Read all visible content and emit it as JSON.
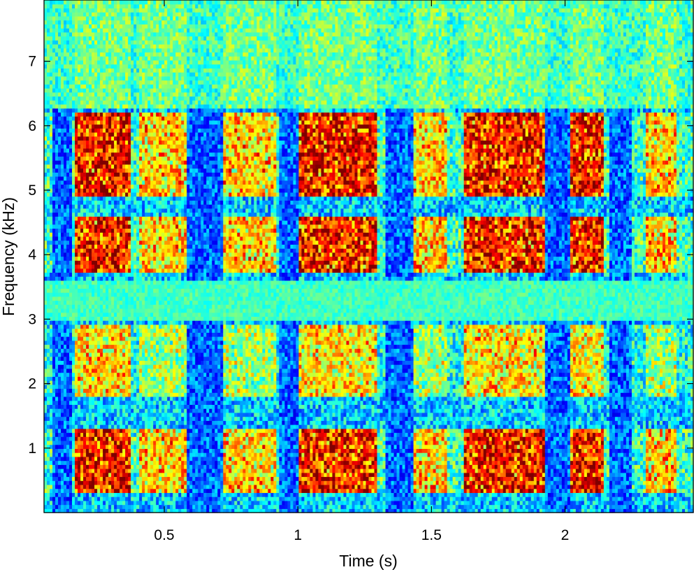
{
  "chart_data": {
    "type": "heatmap",
    "subtype": "spectrogram",
    "title": "",
    "xlabel": "Time (s)",
    "ylabel": "Frequency (kHz)",
    "xlim": [
      0.05,
      2.48
    ],
    "ylim": [
      0.0,
      7.95
    ],
    "x_ticks": [
      0.5,
      1,
      1.5,
      2
    ],
    "x_tick_labels": [
      "0.5",
      "1",
      "1.5",
      "2"
    ],
    "y_ticks": [
      1,
      2,
      3,
      4,
      5,
      6,
      7
    ],
    "y_tick_labels": [
      "1",
      "2",
      "3",
      "4",
      "5",
      "6",
      "7"
    ],
    "colormap": "jet",
    "grid": false,
    "legend": "none",
    "time_bins": 232,
    "frequency_bins": 128,
    "frequency_bands": [
      {
        "from_khz": 0.3,
        "to_khz": 1.3,
        "character": "high-energy formant region"
      },
      {
        "from_khz": 1.8,
        "to_khz": 2.9,
        "character": "mid-energy band"
      },
      {
        "from_khz": 3.7,
        "to_khz": 4.6,
        "character": "high-energy band with strong bursts"
      },
      {
        "from_khz": 4.9,
        "to_khz": 6.2,
        "character": "high-energy band"
      },
      {
        "from_khz": 3.0,
        "to_khz": 3.6,
        "character": "uniform mid-level band"
      },
      {
        "from_khz": 6.3,
        "to_khz": 7.95,
        "character": "mid-level noise"
      }
    ],
    "active_segments_s": [
      {
        "start": 0.17,
        "end": 0.37,
        "level": "high"
      },
      {
        "start": 0.41,
        "end": 0.58,
        "level": "medium"
      },
      {
        "start": 0.72,
        "end": 0.92,
        "level": "medium"
      },
      {
        "start": 1.0,
        "end": 1.3,
        "level": "high"
      },
      {
        "start": 1.43,
        "end": 1.56,
        "level": "medium"
      },
      {
        "start": 1.62,
        "end": 1.92,
        "level": "high"
      },
      {
        "start": 2.02,
        "end": 2.15,
        "level": "high"
      },
      {
        "start": 2.3,
        "end": 2.42,
        "level": "medium"
      }
    ],
    "quiet_segments_s": [
      {
        "start": 0.08,
        "end": 0.15
      },
      {
        "start": 0.58,
        "end": 0.72
      },
      {
        "start": 0.93,
        "end": 1.0
      },
      {
        "start": 1.33,
        "end": 1.43
      },
      {
        "start": 1.93,
        "end": 2.02
      },
      {
        "start": 2.17,
        "end": 2.25
      }
    ]
  }
}
